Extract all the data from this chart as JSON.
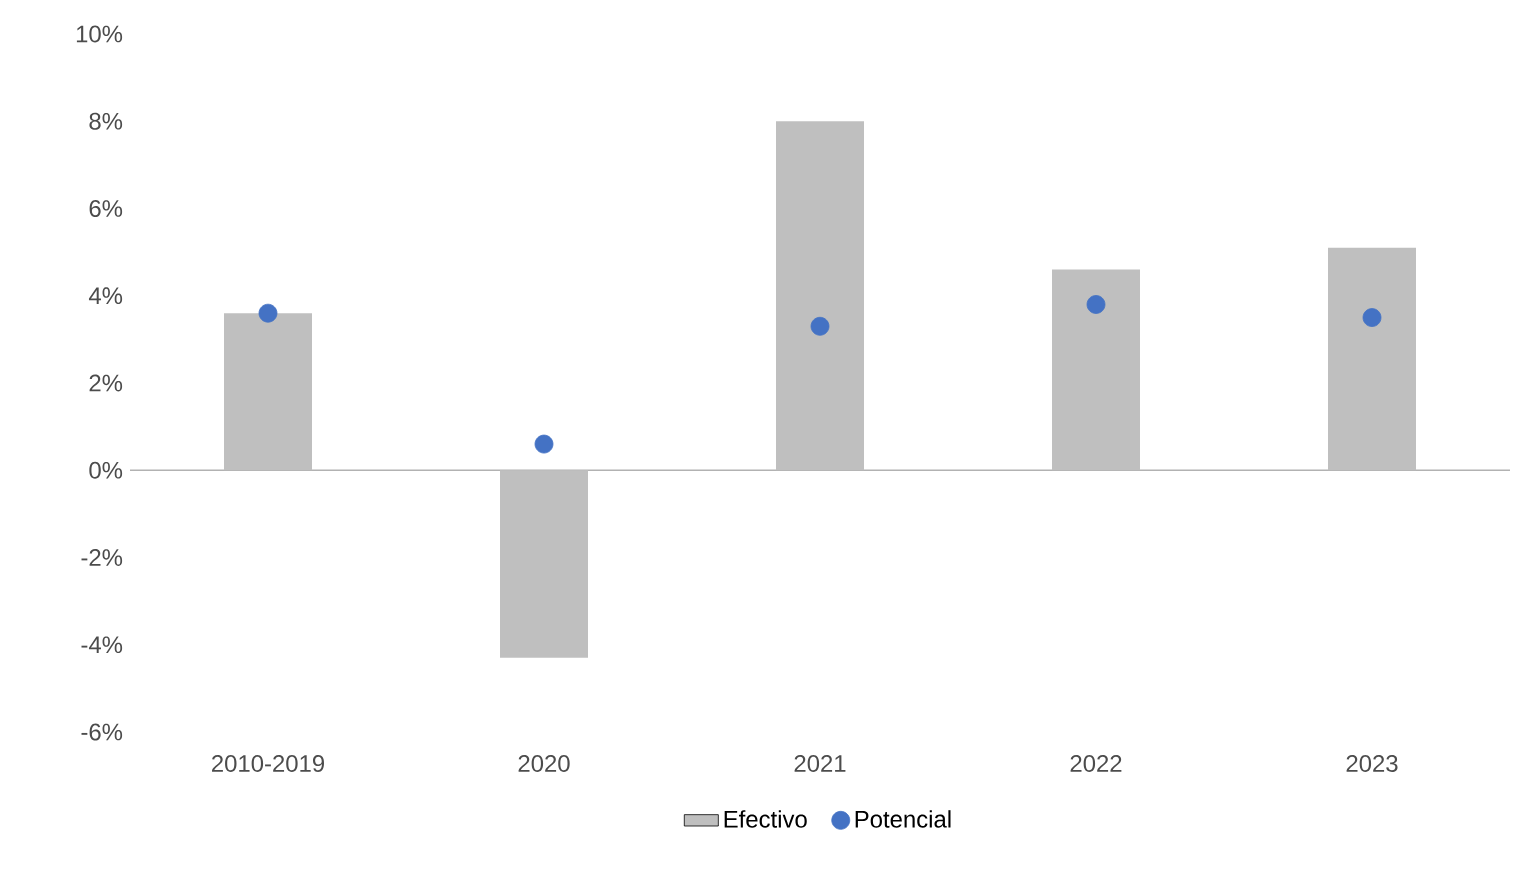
{
  "chart_data": {
    "type": "bar",
    "categories": [
      "2010-2019",
      "2020",
      "2021",
      "2022",
      "2023"
    ],
    "series": [
      {
        "name": "Efectivo",
        "color": "#bfbfbf",
        "values": [
          3.6,
          -4.3,
          8.0,
          4.6,
          5.1
        ]
      },
      {
        "name": "Potencial",
        "type": "scatter",
        "color": "#4472c4",
        "marker": "circle",
        "values": [
          3.6,
          0.6,
          3.3,
          3.8,
          3.5
        ]
      }
    ],
    "ylim": [
      -6,
      10
    ],
    "yticks": [
      {
        "value": -6,
        "label": "-6%"
      },
      {
        "value": -4,
        "label": "-4%"
      },
      {
        "value": -2,
        "label": "-2%"
      },
      {
        "value": 0,
        "label": "0%"
      },
      {
        "value": 2,
        "label": "2%"
      },
      {
        "value": 4,
        "label": "4%"
      },
      {
        "value": 6,
        "label": "6%"
      },
      {
        "value": 8,
        "label": "8%"
      },
      {
        "value": 10,
        "label": "10%"
      }
    ],
    "legend": "bottom"
  }
}
